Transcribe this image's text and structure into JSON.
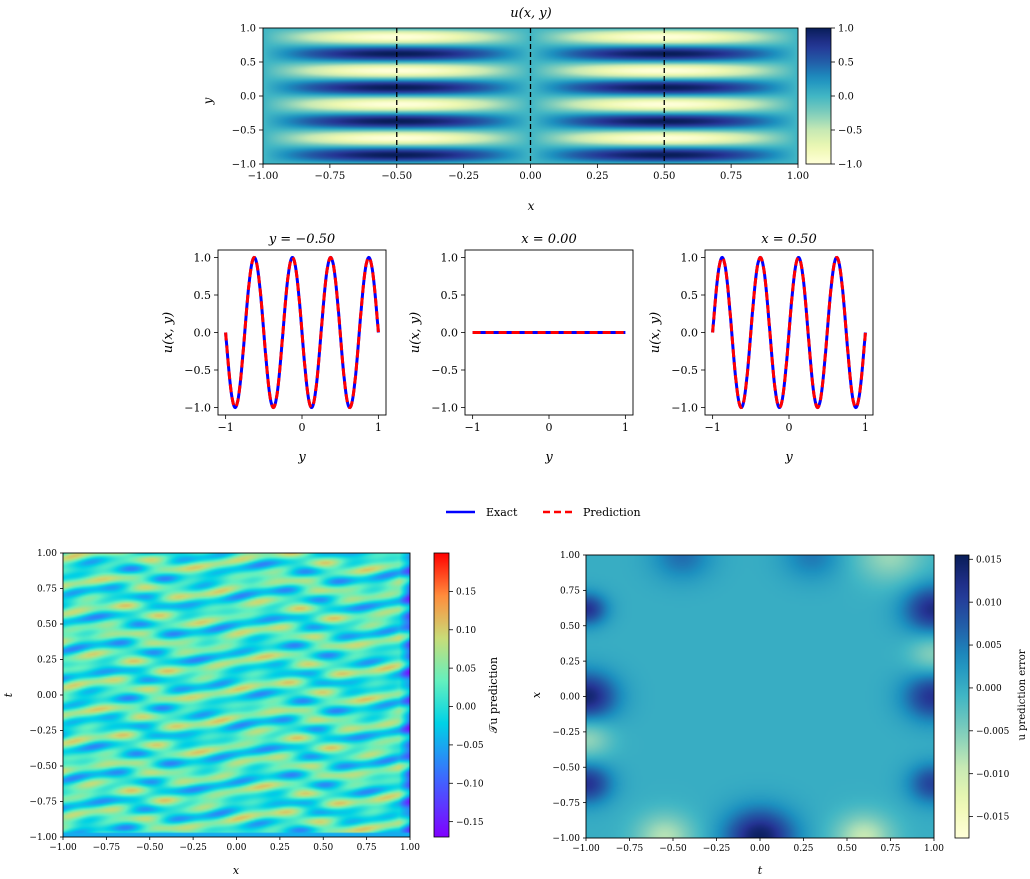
{
  "chart_data": [
    {
      "id": "top",
      "type": "heatmap",
      "title": "u(x, y)",
      "xlabel": "x",
      "ylabel": "y",
      "xlim": [
        -1,
        1
      ],
      "ylim": [
        -1,
        1
      ],
      "xticks": [
        -1.0,
        -0.75,
        -0.5,
        -0.25,
        0.0,
        0.25,
        0.5,
        0.75,
        1.0
      ],
      "xtick_labels": [
        "−1.00",
        "−0.75",
        "−0.50",
        "−0.25",
        "0.00",
        "0.25",
        "0.50",
        "0.75",
        "1.00"
      ],
      "yticks": [
        -1.0,
        -0.5,
        0.0,
        0.5,
        1.0
      ],
      "ytick_labels": [
        "−1.0",
        "−0.5",
        "0.0",
        "0.5",
        "1.0"
      ],
      "colorbar": {
        "ticks": [
          -1.0,
          -0.5,
          0.0,
          0.5,
          1.0
        ],
        "labels": [
          "−1.0",
          "−0.5",
          "0.0",
          "0.5",
          "1.0"
        ],
        "range": [
          -1,
          1
        ],
        "colormap": "YlGnBu"
      },
      "function": "sin(2*pi*(2*y + ... )) style stripes; sign flips across x = 0",
      "dashed_lines_x": [
        -0.5,
        0.0,
        0.5
      ]
    },
    {
      "id": "slice1",
      "type": "line",
      "title": "y = −0.50",
      "xlabel": "y",
      "ylabel": "u(x, y)",
      "xlim": [
        -1.1,
        1.1
      ],
      "ylim": [
        -1.1,
        1.1
      ],
      "xticks": [
        -1,
        0,
        1
      ],
      "xtick_labels": [
        "−1",
        "0",
        "1"
      ],
      "yticks": [
        -1.0,
        -0.5,
        0.0,
        0.5,
        1.0
      ],
      "ytick_labels": [
        "−1.0",
        "−0.5",
        "0.0",
        "0.5",
        "1.0"
      ],
      "series": [
        {
          "name": "Exact",
          "amplitude": 1,
          "cycles": 4,
          "sign": -1
        },
        {
          "name": "Prediction",
          "amplitude": 1,
          "cycles": 4,
          "sign": -1
        }
      ]
    },
    {
      "id": "slice2",
      "type": "line",
      "title": "x = 0.00",
      "xlabel": "y",
      "ylabel": "u(x, y)",
      "xlim": [
        -1.1,
        1.1
      ],
      "ylim": [
        -1.1,
        1.1
      ],
      "xticks": [
        -1,
        0,
        1
      ],
      "xtick_labels": [
        "−1",
        "0",
        "1"
      ],
      "yticks": [
        -1.0,
        -0.5,
        0.0,
        0.5,
        1.0
      ],
      "ytick_labels": [
        "−1.0",
        "−0.5",
        "0.0",
        "0.5",
        "1.0"
      ],
      "series": [
        {
          "name": "Exact",
          "amplitude": 0,
          "cycles": 4,
          "sign": 1
        },
        {
          "name": "Prediction",
          "amplitude": 0,
          "cycles": 4,
          "sign": 1
        }
      ]
    },
    {
      "id": "slice3",
      "type": "line",
      "title": "x = 0.50",
      "xlabel": "y",
      "ylabel": "u(x, y)",
      "xlim": [
        -1.1,
        1.1
      ],
      "ylim": [
        -1.1,
        1.1
      ],
      "xticks": [
        -1,
        0,
        1
      ],
      "xtick_labels": [
        "−1",
        "0",
        "1"
      ],
      "yticks": [
        -1.0,
        -0.5,
        0.0,
        0.5,
        1.0
      ],
      "ytick_labels": [
        "−1.0",
        "−0.5",
        "0.0",
        "0.5",
        "1.0"
      ],
      "series": [
        {
          "name": "Exact",
          "amplitude": 1,
          "cycles": 4,
          "sign": 1
        },
        {
          "name": "Prediction",
          "amplitude": 1,
          "cycles": 4,
          "sign": 1
        }
      ]
    },
    {
      "id": "bottom-left",
      "type": "heatmap",
      "xlabel": "x",
      "ylabel": "t",
      "xlim": [
        -1,
        1
      ],
      "ylim": [
        -1,
        1
      ],
      "xticks": [
        -1.0,
        -0.75,
        -0.5,
        -0.25,
        0.0,
        0.25,
        0.5,
        0.75,
        1.0
      ],
      "xtick_labels": [
        "−1.00",
        "−0.75",
        "−0.50",
        "−0.25",
        "0.00",
        "0.25",
        "0.50",
        "0.75",
        "1.00"
      ],
      "yticks": [
        -1.0,
        -0.75,
        -0.5,
        -0.25,
        0.0,
        0.25,
        0.5,
        0.75,
        1.0
      ],
      "ytick_labels": [
        "−1.00",
        "−0.75",
        "−0.50",
        "−0.25",
        "0.00",
        "0.25",
        "0.50",
        "0.75",
        "1.00"
      ],
      "colorbar": {
        "label": "𝒯u prediction",
        "ticks": [
          -0.15,
          -0.1,
          -0.05,
          0.0,
          0.05,
          0.1,
          0.15
        ],
        "labels": [
          "−0.15",
          "−0.10",
          "−0.05",
          "0.00",
          "0.05",
          "0.10",
          "0.15"
        ],
        "range": [
          -0.17,
          0.2
        ],
        "colormap": "rainbow"
      }
    },
    {
      "id": "bottom-right",
      "type": "heatmap",
      "xlabel": "t",
      "ylabel": "x",
      "xlim": [
        -1,
        1
      ],
      "ylim": [
        -1,
        1
      ],
      "xticks": [
        -1.0,
        -0.75,
        -0.5,
        -0.25,
        0.0,
        0.25,
        0.5,
        0.75,
        1.0
      ],
      "xtick_labels": [
        "−1.00",
        "−0.75",
        "−0.50",
        "−0.25",
        "0.00",
        "0.25",
        "0.50",
        "0.75",
        "1.00"
      ],
      "yticks": [
        -1.0,
        -0.75,
        -0.5,
        -0.25,
        0.0,
        0.25,
        0.5,
        0.75,
        1.0
      ],
      "ytick_labels": [
        "−1.00",
        "−0.75",
        "−0.50",
        "−0.25",
        "0.00",
        "0.25",
        "0.50",
        "0.75",
        "1.00"
      ],
      "colorbar": {
        "label": "u prediction error",
        "ticks": [
          -0.015,
          -0.01,
          -0.005,
          0.0,
          0.005,
          0.01,
          0.015
        ],
        "labels": [
          "−0.015",
          "−0.010",
          "−0.005",
          "0.000",
          "0.005",
          "0.010",
          "0.015"
        ],
        "range": [
          -0.0175,
          0.0155
        ],
        "colormap": "YlGnBu"
      }
    }
  ],
  "legend": {
    "items": [
      {
        "name": "Exact",
        "color": "#0000ff",
        "style": "solid"
      },
      {
        "name": "Prediction",
        "color": "#ff0000",
        "style": "dashed"
      }
    ],
    "placement": "center"
  }
}
